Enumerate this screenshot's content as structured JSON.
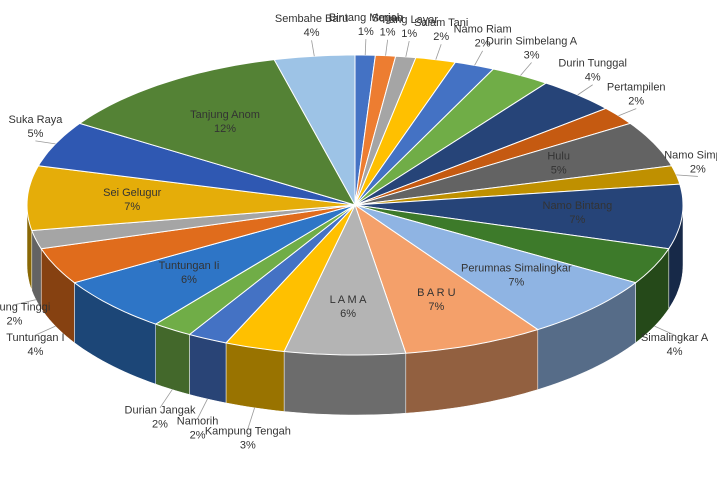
{
  "chart_data": {
    "type": "pie3d",
    "categories": [
      "Bintang Meriah",
      "Sugau",
      "Tiang Layar",
      "Salam Tani",
      "Namo Riam",
      "Durin Simbelang A",
      "Durin Tunggal",
      "Pertampilen",
      "Hulu",
      "Namo Simpur",
      "Namo Bintang",
      "Simalingkar A",
      "Perumnas Simalingkar",
      "B A R U",
      "L A M A",
      "Kampung Tengah",
      "Namorih",
      "Durian Jangak",
      "Tuntungan Ii",
      "Tuntungan I",
      "Gunung Tinggi",
      "Sei Gelugur",
      "Suka Raya",
      "Tanjung Anom",
      "Sembahe Baru"
    ],
    "values": [
      1,
      1,
      1,
      2,
      2,
      3,
      4,
      2,
      5,
      2,
      7,
      4,
      7,
      7,
      6,
      3,
      2,
      2,
      6,
      4,
      2,
      7,
      5,
      12,
      4
    ],
    "value_labels": [
      "1%",
      "1%",
      "1%",
      "2%",
      "2%",
      "3%",
      "4%",
      "2%",
      "5%",
      "2%",
      "7%",
      "4%",
      "7%",
      "7%",
      "6%",
      "3%",
      "2%",
      "2%",
      "6%",
      "4%",
      "2%",
      "7%",
      "5%",
      "12%",
      "4%"
    ],
    "colors": [
      "#4472c4",
      "#ed7d31",
      "#a5a5a5",
      "#ffc000",
      "#4472c4",
      "#70ad47",
      "#264478",
      "#c55a11",
      "#636363",
      "#bf9000",
      "#264478",
      "#3d7a2a",
      "#8fb4e3",
      "#f4a06a",
      "#b4b4b4",
      "#ffc000",
      "#4472c4",
      "#70ad47",
      "#2e75c6",
      "#e06c1c",
      "#a5a5a5",
      "#e5ad09",
      "#2f58b2",
      "#548235",
      "#9dc3e6"
    ]
  }
}
